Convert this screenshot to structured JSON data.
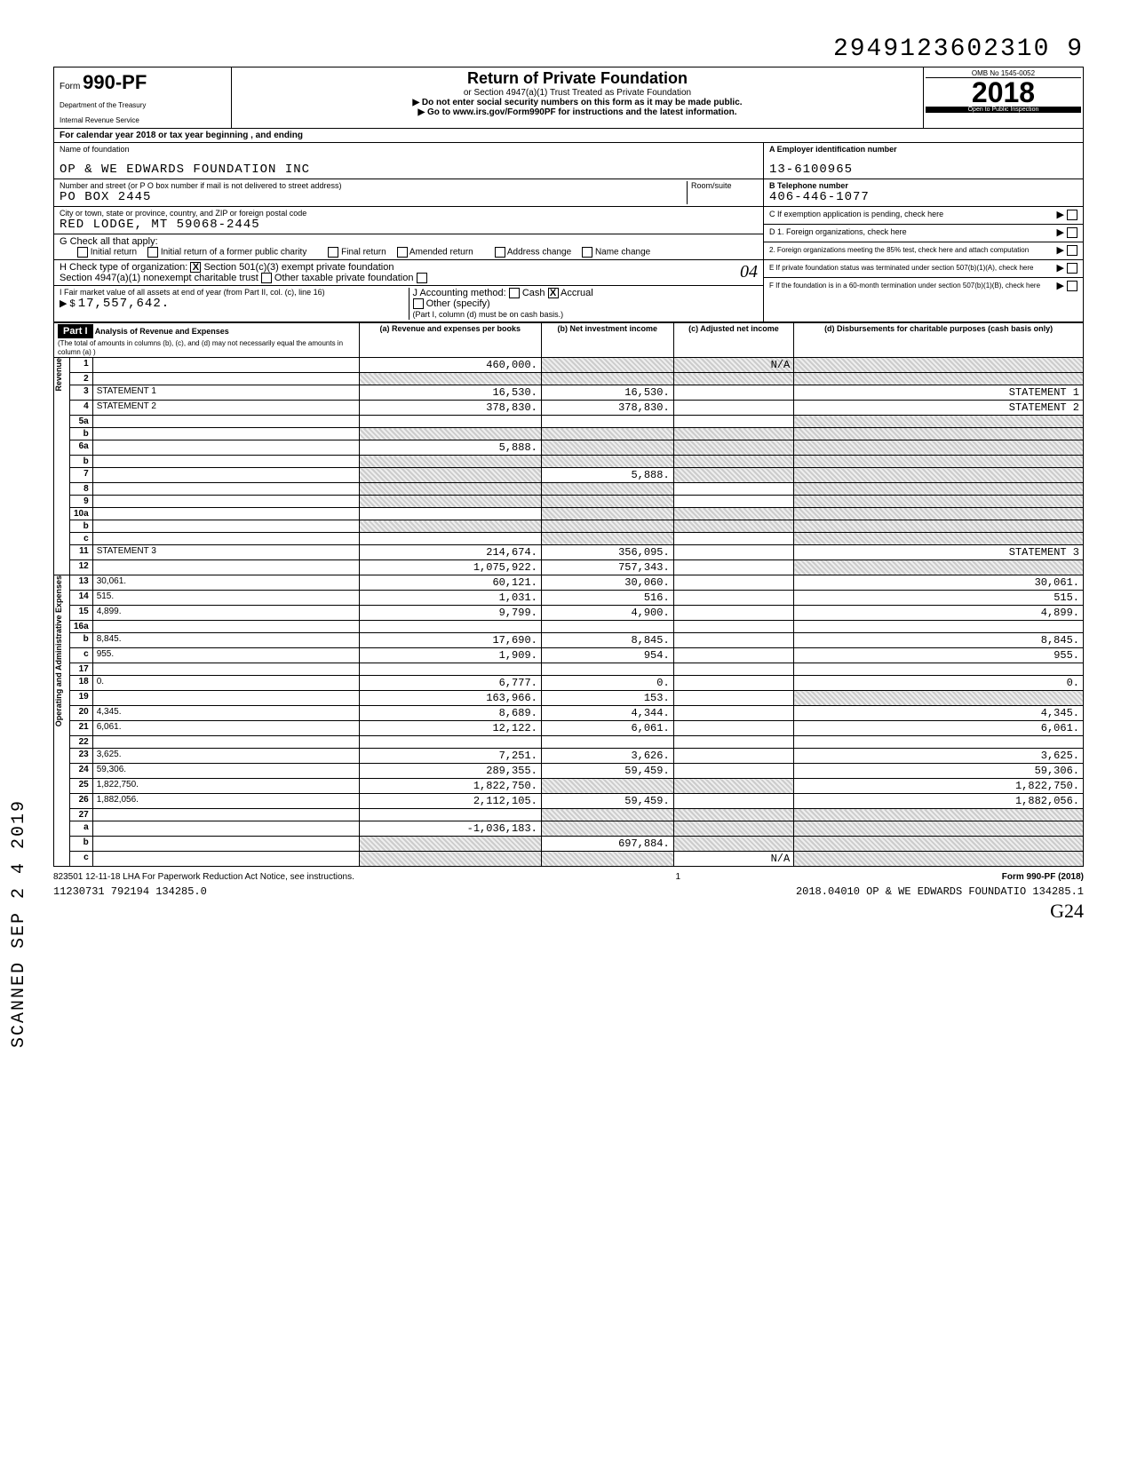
{
  "doc_number": "2949123602310 9",
  "form": {
    "prefix": "Form",
    "number": "990-PF",
    "dept": "Department of the Treasury",
    "irs": "Internal Revenue Service"
  },
  "header": {
    "title": "Return of Private Foundation",
    "sub1": "or Section 4947(a)(1) Trust Treated as Private Foundation",
    "sub2": "▶ Do not enter social security numbers on this form as it may be made public.",
    "sub3": "▶ Go to www.irs.gov/Form990PF for instructions and the latest information.",
    "omb": "OMB No  1545-0052",
    "year": "2018",
    "inspection": "Open to Public Inspection"
  },
  "calendar": "For calendar year 2018 or tax year beginning                    , and ending",
  "foundation": {
    "name_label": "Name of foundation",
    "name": "OP & WE EDWARDS FOUNDATION INC",
    "street_label": "Number and street (or P O  box number if mail is not delivered to street address)",
    "street": "PO BOX 2445",
    "room_label": "Room/suite",
    "city_label": "City or town, state or province, country, and ZIP or foreign postal code",
    "city": "RED LODGE, MT  59068-2445"
  },
  "right_block": {
    "a_label": "A  Employer identification number",
    "a_value": "13-6100965",
    "b_label": "B  Telephone number",
    "b_value": "406-446-1077",
    "c_label": "C  If exemption application is pending, check here",
    "d1_label": "D  1. Foreign organizations, check here",
    "d2_label": "2. Foreign organizations meeting the 85% test, check here and attach computation",
    "e_label": "E  If private foundation status was terminated under section 507(b)(1)(A), check here",
    "f_label": "F  If the foundation is in a 60-month termination under section 507(b)(1)(B), check here"
  },
  "section_g": {
    "label": "G  Check all that apply:",
    "opts": [
      "Initial return",
      "Final return",
      "Address change",
      "Initial return of a former public charity",
      "Amended return",
      "Name change"
    ]
  },
  "section_h": {
    "label": "H  Check type of organization:",
    "opt1": "Section 501(c)(3) exempt private foundation",
    "opt2": "Section 4947(a)(1) nonexempt charitable trust",
    "opt3": "Other taxable private foundation",
    "checked": "X",
    "annotation": "04"
  },
  "section_i": {
    "label": "I  Fair market value of all assets at end of year (from Part II, col. (c), line 16)",
    "value": "17,557,642.",
    "prefix": "▶ $"
  },
  "section_j": {
    "label": "J  Accounting method:",
    "cash": "Cash",
    "accrual": "Accrual",
    "other": "Other (specify)",
    "note": "(Part I, column (d) must be on cash basis.)",
    "checked": "X"
  },
  "part1": {
    "tag": "Part I",
    "title": "Analysis of Revenue and Expenses",
    "sub": "(The total of amounts in columns (b), (c), and (d) may not necessarily equal the amounts in column (a) )",
    "col_a": "(a) Revenue and expenses per books",
    "col_b": "(b) Net investment income",
    "col_c": "(c) Adjusted net income",
    "col_d": "(d) Disbursements for charitable purposes (cash basis only)"
  },
  "vert_labels": {
    "revenue": "Revenue",
    "opex": "Operating and Administrative Expenses"
  },
  "rows": [
    {
      "n": "1",
      "d": "",
      "a": "460,000.",
      "b": "",
      "c": "N/A",
      "sh_b": true,
      "sh_c": true,
      "sh_d": true
    },
    {
      "n": "2",
      "d": "",
      "a": "",
      "b": "",
      "c": "",
      "sh_a": true,
      "sh_b": true,
      "sh_c": true,
      "sh_d": true
    },
    {
      "n": "3",
      "d": "STATEMENT 1",
      "a": "16,530.",
      "b": "16,530.",
      "c": "",
      "sh_d": false
    },
    {
      "n": "4",
      "d": "STATEMENT 2",
      "a": "378,830.",
      "b": "378,830.",
      "c": ""
    },
    {
      "n": "5a",
      "d": "",
      "a": "",
      "b": "",
      "c": "",
      "sh_d": true
    },
    {
      "n": "b",
      "d": "",
      "a": "",
      "b": "",
      "c": "",
      "sh_a": true,
      "sh_b": true,
      "sh_c": true,
      "sh_d": true
    },
    {
      "n": "6a",
      "d": "",
      "a": "5,888.",
      "b": "",
      "c": "",
      "sh_b": true,
      "sh_c": true,
      "sh_d": true
    },
    {
      "n": "b",
      "d": "",
      "a": "",
      "b": "",
      "c": "",
      "sh_a": true,
      "sh_b": true,
      "sh_c": true,
      "sh_d": true
    },
    {
      "n": "7",
      "d": "",
      "a": "",
      "b": "5,888.",
      "c": "",
      "sh_a": true,
      "sh_c": true,
      "sh_d": true
    },
    {
      "n": "8",
      "d": "",
      "a": "",
      "b": "",
      "c": "",
      "sh_a": true,
      "sh_b": true,
      "sh_d": true
    },
    {
      "n": "9",
      "d": "",
      "a": "",
      "b": "",
      "c": "",
      "sh_a": true,
      "sh_b": true,
      "sh_d": true
    },
    {
      "n": "10a",
      "d": "",
      "a": "",
      "b": "",
      "c": "",
      "sh_b": true,
      "sh_c": true,
      "sh_d": true
    },
    {
      "n": "b",
      "d": "",
      "a": "",
      "b": "",
      "c": "",
      "sh_a": true,
      "sh_b": true,
      "sh_c": true,
      "sh_d": true
    },
    {
      "n": "c",
      "d": "",
      "a": "",
      "b": "",
      "c": "",
      "sh_b": true,
      "sh_d": true
    },
    {
      "n": "11",
      "d": "STATEMENT 3",
      "a": "214,674.",
      "b": "356,095.",
      "c": ""
    },
    {
      "n": "12",
      "d": "",
      "a": "1,075,922.",
      "b": "757,343.",
      "c": "",
      "sh_d": true
    },
    {
      "n": "13",
      "d": "30,061.",
      "a": "60,121.",
      "b": "30,060.",
      "c": ""
    },
    {
      "n": "14",
      "d": "515.",
      "a": "1,031.",
      "b": "516.",
      "c": ""
    },
    {
      "n": "15",
      "d": "4,899.",
      "a": "9,799.",
      "b": "4,900.",
      "c": ""
    },
    {
      "n": "16a",
      "d": "",
      "a": "",
      "b": "",
      "c": ""
    },
    {
      "n": "b",
      "d": "8,845.",
      "a": "17,690.",
      "b": "8,845.",
      "c": ""
    },
    {
      "n": "c",
      "d": "955.",
      "a": "1,909.",
      "b": "954.",
      "c": ""
    },
    {
      "n": "17",
      "d": "",
      "a": "",
      "b": "",
      "c": ""
    },
    {
      "n": "18",
      "d": "0.",
      "a": "6,777.",
      "b": "0.",
      "c": ""
    },
    {
      "n": "19",
      "d": "",
      "a": "163,966.",
      "b": "153.",
      "c": "",
      "sh_d": true
    },
    {
      "n": "20",
      "d": "4,345.",
      "a": "8,689.",
      "b": "4,344.",
      "c": ""
    },
    {
      "n": "21",
      "d": "6,061.",
      "a": "12,122.",
      "b": "6,061.",
      "c": ""
    },
    {
      "n": "22",
      "d": "",
      "a": "",
      "b": "",
      "c": ""
    },
    {
      "n": "23",
      "d": "3,625.",
      "a": "7,251.",
      "b": "3,626.",
      "c": ""
    },
    {
      "n": "24",
      "d": "59,306.",
      "a": "289,355.",
      "b": "59,459.",
      "c": ""
    },
    {
      "n": "25",
      "d": "1,822,750.",
      "a": "1,822,750.",
      "b": "",
      "c": "",
      "sh_b": true,
      "sh_c": true
    },
    {
      "n": "26",
      "d": "1,882,056.",
      "a": "2,112,105.",
      "b": "59,459.",
      "c": ""
    },
    {
      "n": "27",
      "d": "",
      "a": "",
      "b": "",
      "c": "",
      "sh_b": true,
      "sh_c": true,
      "sh_d": true
    },
    {
      "n": "a",
      "d": "",
      "a": "-1,036,183.",
      "b": "",
      "c": "",
      "sh_b": true,
      "sh_c": true,
      "sh_d": true
    },
    {
      "n": "b",
      "d": "",
      "a": "",
      "b": "697,884.",
      "c": "",
      "sh_a": true,
      "sh_c": true,
      "sh_d": true
    },
    {
      "n": "c",
      "d": "",
      "a": "",
      "b": "",
      "c": "N/A",
      "sh_a": true,
      "sh_b": true,
      "sh_d": true
    }
  ],
  "footer": {
    "left": "823501  12-11-18    LHA  For Paperwork Reduction Act Notice, see instructions.",
    "mid": "1",
    "right": "Form 990-PF (2018)"
  },
  "footer2": {
    "left": "11230731 792194 134285.0",
    "right": "2018.04010 OP & WE EDWARDS FOUNDATIO 134285.1"
  },
  "side_stamp": "SCANNED SEP 2 4 2019",
  "g24": "G24"
}
